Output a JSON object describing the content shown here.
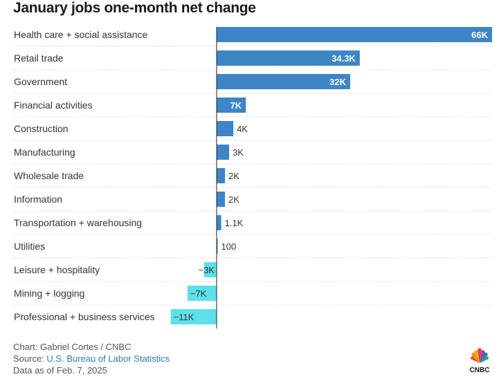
{
  "chart_data": {
    "type": "bar",
    "orientation": "horizontal",
    "title": "January jobs one-month net change",
    "categories": [
      "Health care + social assistance",
      "Retail trade",
      "Government",
      "Financial activities",
      "Construction",
      "Manufacturing",
      "Wholesale trade",
      "Information",
      "Transportation + warehousing",
      "Utilities",
      "Leisure + hospitality",
      "Mining + logging",
      "Professional + business services"
    ],
    "values": [
      66000,
      34300,
      32000,
      7000,
      4000,
      3000,
      2000,
      2000,
      1100,
      100,
      -3000,
      -7000,
      -11000
    ],
    "value_labels": [
      "66K",
      "34.3K",
      "32K",
      "7K",
      "4K",
      "3K",
      "2K",
      "2K",
      "1.1K",
      "100",
      "−3K",
      "−7K",
      "−11K"
    ],
    "xlim": [
      -11000,
      66000
    ],
    "grid": false,
    "colors": {
      "positive": "#3d85c6",
      "negative": "#5ee0ea"
    }
  },
  "footer": {
    "credit": "Chart: Gabriel Cortes / CNBC",
    "source_prefix": "Source: ",
    "source_link": "U.S. Bureau of Labor Statistics",
    "date": "Data as of Feb. 7, 2025"
  },
  "logo": {
    "icon": "cnbc-peacock-icon",
    "text": "CNBC"
  }
}
